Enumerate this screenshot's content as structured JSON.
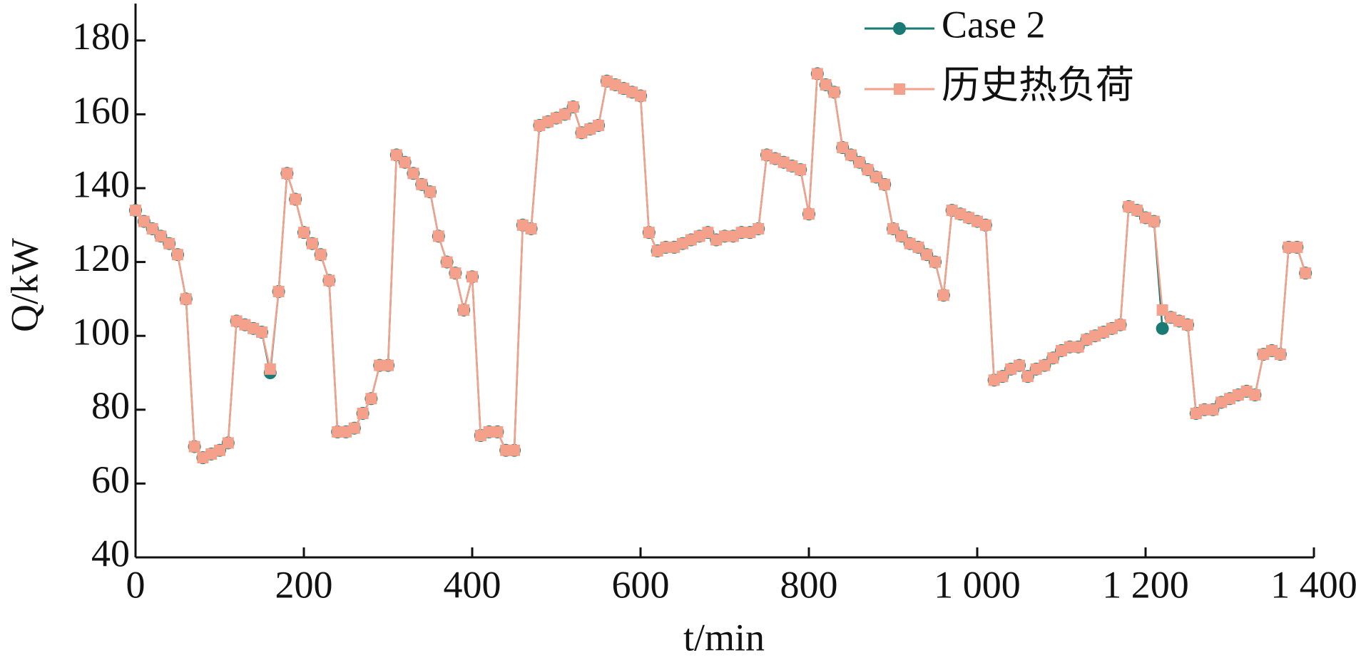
{
  "chart_data": {
    "type": "line",
    "xlabel": "t/min",
    "ylabel": "Q/kW",
    "x": [
      0,
      10,
      20,
      30,
      40,
      50,
      60,
      70,
      80,
      90,
      100,
      110,
      120,
      130,
      140,
      150,
      160,
      170,
      180,
      190,
      200,
      210,
      220,
      230,
      240,
      250,
      260,
      270,
      280,
      290,
      300,
      310,
      320,
      330,
      340,
      350,
      360,
      370,
      380,
      390,
      400,
      410,
      420,
      430,
      440,
      450,
      460,
      470,
      480,
      490,
      500,
      510,
      520,
      530,
      540,
      550,
      560,
      570,
      580,
      590,
      600,
      610,
      620,
      630,
      640,
      650,
      660,
      670,
      680,
      690,
      700,
      710,
      720,
      730,
      740,
      750,
      760,
      770,
      780,
      790,
      800,
      810,
      820,
      830,
      840,
      850,
      860,
      870,
      880,
      890,
      900,
      910,
      920,
      930,
      940,
      950,
      960,
      970,
      980,
      990,
      1000,
      1010,
      1020,
      1030,
      1040,
      1050,
      1060,
      1070,
      1080,
      1090,
      1100,
      1110,
      1120,
      1130,
      1140,
      1150,
      1160,
      1170,
      1180,
      1190,
      1200,
      1210,
      1220,
      1230,
      1240,
      1250,
      1260,
      1270,
      1280,
      1290,
      1300,
      1310,
      1320,
      1330,
      1340,
      1350,
      1360,
      1370,
      1380,
      1390
    ],
    "series": [
      {
        "name": "Case 2",
        "color": "#1a7a74",
        "marker": "circle",
        "values": [
          134,
          131,
          129,
          127,
          125,
          122,
          110,
          70,
          67,
          68,
          69,
          71,
          104,
          103,
          102,
          101,
          90,
          112,
          144,
          137,
          128,
          125,
          122,
          115,
          74,
          74,
          75,
          79,
          83,
          92,
          92,
          149,
          147,
          144,
          141,
          139,
          127,
          120,
          117,
          107,
          116,
          73,
          74,
          74,
          69,
          69,
          130,
          129,
          157,
          158,
          159,
          160,
          162,
          155,
          156,
          157,
          169,
          168,
          167,
          166,
          165,
          128,
          123,
          124,
          124,
          125,
          126,
          127,
          128,
          126,
          127,
          127,
          128,
          128,
          129,
          149,
          148,
          147,
          146,
          145,
          133,
          171,
          168,
          166,
          151,
          149,
          147,
          145,
          143,
          141,
          129,
          127,
          125,
          124,
          122,
          120,
          111,
          134,
          133,
          132,
          131,
          130,
          88,
          89,
          91,
          92,
          89,
          91,
          92,
          94,
          96,
          97,
          97,
          99,
          100,
          101,
          102,
          103,
          135,
          134,
          132,
          131,
          102,
          105,
          104,
          103,
          79,
          80,
          80,
          82,
          83,
          84,
          85,
          84,
          95,
          96,
          95,
          124,
          124,
          117
        ]
      },
      {
        "name": "历史热负荷",
        "color": "#f4a08a",
        "marker": "square",
        "values": [
          134,
          131,
          129,
          127,
          125,
          122,
          110,
          70,
          67,
          68,
          69,
          71,
          104,
          103,
          102,
          101,
          91,
          112,
          144,
          137,
          128,
          125,
          122,
          115,
          74,
          74,
          75,
          79,
          83,
          92,
          92,
          149,
          147,
          144,
          141,
          139,
          127,
          120,
          117,
          107,
          116,
          73,
          74,
          74,
          69,
          69,
          130,
          129,
          157,
          158,
          159,
          160,
          162,
          155,
          156,
          157,
          169,
          168,
          167,
          166,
          165,
          128,
          123,
          124,
          124,
          125,
          126,
          127,
          128,
          126,
          127,
          127,
          128,
          128,
          129,
          149,
          148,
          147,
          146,
          145,
          133,
          171,
          168,
          166,
          151,
          149,
          147,
          145,
          143,
          141,
          129,
          127,
          125,
          124,
          122,
          120,
          111,
          134,
          133,
          132,
          131,
          130,
          88,
          89,
          91,
          92,
          89,
          91,
          92,
          94,
          96,
          97,
          97,
          99,
          100,
          101,
          102,
          103,
          135,
          134,
          132,
          131,
          107,
          105,
          104,
          103,
          79,
          80,
          80,
          82,
          83,
          84,
          85,
          84,
          95,
          96,
          95,
          124,
          124,
          117
        ]
      }
    ],
    "xlim": [
      0,
      1400
    ],
    "xticks": [
      0,
      200,
      400,
      600,
      800,
      {
        "value": 1000,
        "label": "1 000"
      },
      {
        "value": 1200,
        "label": "1 200"
      },
      {
        "value": 1400,
        "label": "1 400"
      }
    ],
    "ylim": [
      40,
      190
    ],
    "yticks": [
      40,
      60,
      80,
      100,
      120,
      140,
      160,
      180
    ],
    "grid": false,
    "legend": "upper right"
  }
}
